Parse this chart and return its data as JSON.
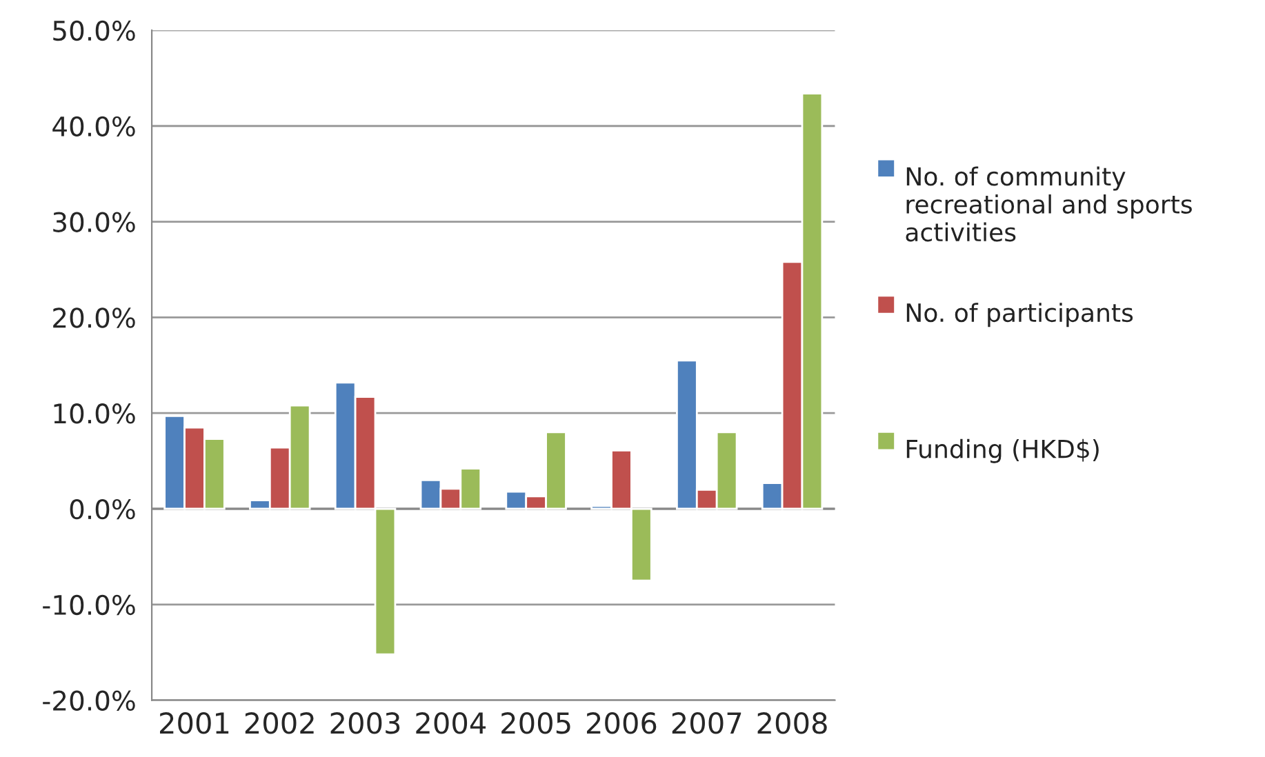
{
  "chart_data": {
    "type": "bar",
    "categories": [
      "2001",
      "2002",
      "2003",
      "2004",
      "2005",
      "2006",
      "2007",
      "2008"
    ],
    "series": [
      {
        "name": "No. of community recreational and sports activities",
        "color": "#4f81bd",
        "values": [
          9.7,
          0.9,
          13.2,
          3.0,
          1.8,
          0.3,
          15.5,
          2.7
        ]
      },
      {
        "name": "No. of participants",
        "color": "#c0504d",
        "values": [
          8.5,
          6.4,
          11.7,
          2.1,
          1.3,
          6.1,
          2.0,
          25.8
        ]
      },
      {
        "name": "Funding (HKD$)",
        "color": "#9bbb59",
        "values": [
          7.3,
          10.8,
          -15.2,
          4.2,
          8.0,
          -7.5,
          8.0,
          43.4
        ]
      }
    ],
    "ylim": [
      -20,
      50
    ],
    "yticks": [
      {
        "value": -20,
        "label": "-20.0%"
      },
      {
        "value": -10,
        "label": "-10.0%"
      },
      {
        "value": 0,
        "label": "0.0%"
      },
      {
        "value": 10,
        "label": "10.0%"
      },
      {
        "value": 20,
        "label": "20.0%"
      },
      {
        "value": 30,
        "label": "30.0%"
      },
      {
        "value": 40,
        "label": "40.0%"
      },
      {
        "value": 50,
        "label": "50.0%"
      }
    ],
    "grid": "y",
    "legend": "right"
  }
}
